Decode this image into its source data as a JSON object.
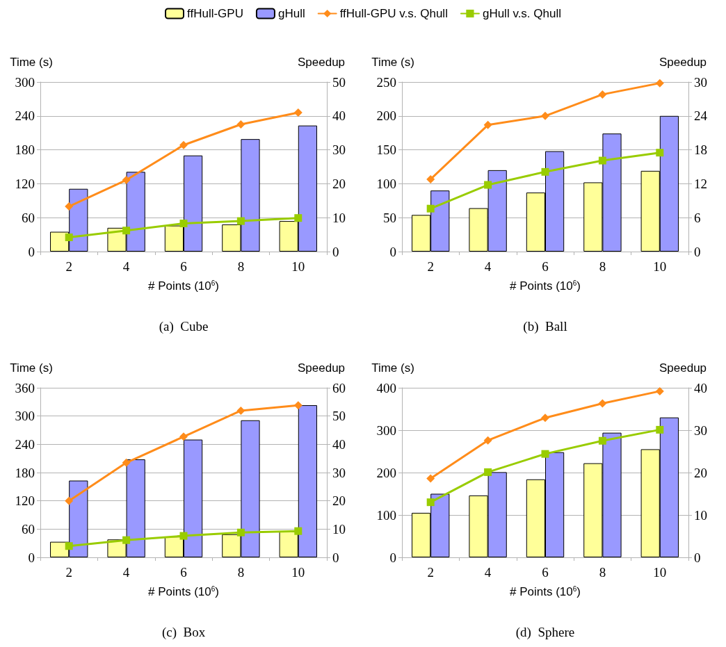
{
  "chart_data": [
    {
      "type": "bar",
      "title": "(a)  Cube",
      "xlabel": "# Points (10$^{6}$)",
      "ylabel": "Time (s)",
      "y2label": "Speedup",
      "categories": [
        "2",
        "4",
        "6",
        "8",
        "10"
      ],
      "ylim": [
        0,
        300
      ],
      "yticks": [
        0,
        60,
        120,
        180,
        240,
        300
      ],
      "y2lim": [
        0,
        50
      ],
      "y2ticks": [
        0,
        10,
        20,
        30,
        40,
        50
      ],
      "grid": "y",
      "legend": "top",
      "series": [
        {
          "name": "ffHull-GPU",
          "color": "#ffff99",
          "values": [
            35,
            42,
            46,
            48,
            54
          ]
        },
        {
          "name": "gHull",
          "color": "#9999ff",
          "values": [
            111,
            141,
            170,
            199,
            223
          ]
        },
        {
          "name": "ffHull-GPU v.s. Qhull",
          "type": "line",
          "axis": "y2",
          "marker": "diamond",
          "color": "#ff8c1a",
          "values": [
            13.3,
            21.1,
            31.4,
            37.5,
            41
          ]
        },
        {
          "name": "gHull v.s. Qhull",
          "type": "line",
          "axis": "y2",
          "marker": "square",
          "color": "#99cc00",
          "values": [
            4.2,
            6.2,
            8.3,
            9.0,
            9.9
          ]
        }
      ]
    },
    {
      "type": "bar",
      "title": "(b)  Ball",
      "xlabel": "# Points (10$^{6}$)",
      "ylabel": "Time (s)",
      "y2label": "Speedup",
      "categories": [
        "2",
        "4",
        "6",
        "8",
        "10"
      ],
      "ylim": [
        0,
        250
      ],
      "yticks": [
        0,
        50,
        100,
        150,
        200,
        250
      ],
      "y2lim": [
        0,
        30
      ],
      "y2ticks": [
        0,
        6,
        12,
        18,
        24,
        30
      ],
      "grid": "y",
      "series": [
        {
          "color": "#ffff99",
          "values": [
            54,
            64,
            87,
            102,
            119
          ]
        },
        {
          "color": "#9999ff",
          "values": [
            90,
            120,
            148,
            174,
            200
          ]
        },
        {
          "type": "line",
          "axis": "y2",
          "marker": "diamond",
          "color": "#ff8c1a",
          "values": [
            12.8,
            22.4,
            24.0,
            27.8,
            29.8
          ]
        },
        {
          "type": "line",
          "axis": "y2",
          "marker": "square",
          "color": "#99cc00",
          "values": [
            7.6,
            11.8,
            14.1,
            16.1,
            17.5
          ]
        }
      ]
    },
    {
      "type": "bar",
      "title": "(c)  Box",
      "xlabel": "# Points (10$^{6}$)",
      "ylabel": "Time (s)",
      "y2label": "Speedup",
      "categories": [
        "2",
        "4",
        "6",
        "8",
        "10"
      ],
      "ylim": [
        0,
        360
      ],
      "yticks": [
        0,
        60,
        120,
        180,
        240,
        300,
        360
      ],
      "y2lim": [
        0,
        60
      ],
      "y2ticks": [
        0,
        10,
        20,
        30,
        40,
        50,
        60
      ],
      "grid": "y",
      "series": [
        {
          "color": "#ffff99",
          "values": [
            33,
            38,
            44,
            49,
            55
          ]
        },
        {
          "color": "#9999ff",
          "values": [
            163,
            208,
            250,
            291,
            323
          ]
        },
        {
          "type": "line",
          "axis": "y2",
          "marker": "diamond",
          "color": "#ff8c1a",
          "values": [
            20.0,
            33.5,
            42.7,
            51.9,
            53.8
          ]
        },
        {
          "type": "line",
          "axis": "y2",
          "marker": "square",
          "color": "#99cc00",
          "values": [
            4.0,
            6.1,
            7.6,
            8.8,
            9.3
          ]
        }
      ]
    },
    {
      "type": "bar",
      "title": "(d)  Sphere",
      "xlabel": "# Points (10$^{6}$)",
      "ylabel": "Time (s)",
      "y2label": "Speedup",
      "categories": [
        "2",
        "4",
        "6",
        "8",
        "10"
      ],
      "ylim": [
        0,
        400
      ],
      "yticks": [
        0,
        100,
        200,
        300,
        400
      ],
      "y2lim": [
        0,
        40
      ],
      "y2ticks": [
        0,
        10,
        20,
        30,
        40
      ],
      "grid": "y",
      "series": [
        {
          "color": "#ffff99",
          "values": [
            105,
            146,
            184,
            222,
            255
          ]
        },
        {
          "color": "#9999ff",
          "values": [
            150,
            201,
            248,
            294,
            330
          ]
        },
        {
          "type": "line",
          "axis": "y2",
          "marker": "diamond",
          "color": "#ff8c1a",
          "values": [
            18.6,
            27.6,
            32.9,
            36.3,
            39.2
          ]
        },
        {
          "type": "line",
          "axis": "y2",
          "marker": "square",
          "color": "#99cc00",
          "values": [
            13.0,
            20.1,
            24.4,
            27.5,
            30.1
          ]
        }
      ]
    }
  ]
}
